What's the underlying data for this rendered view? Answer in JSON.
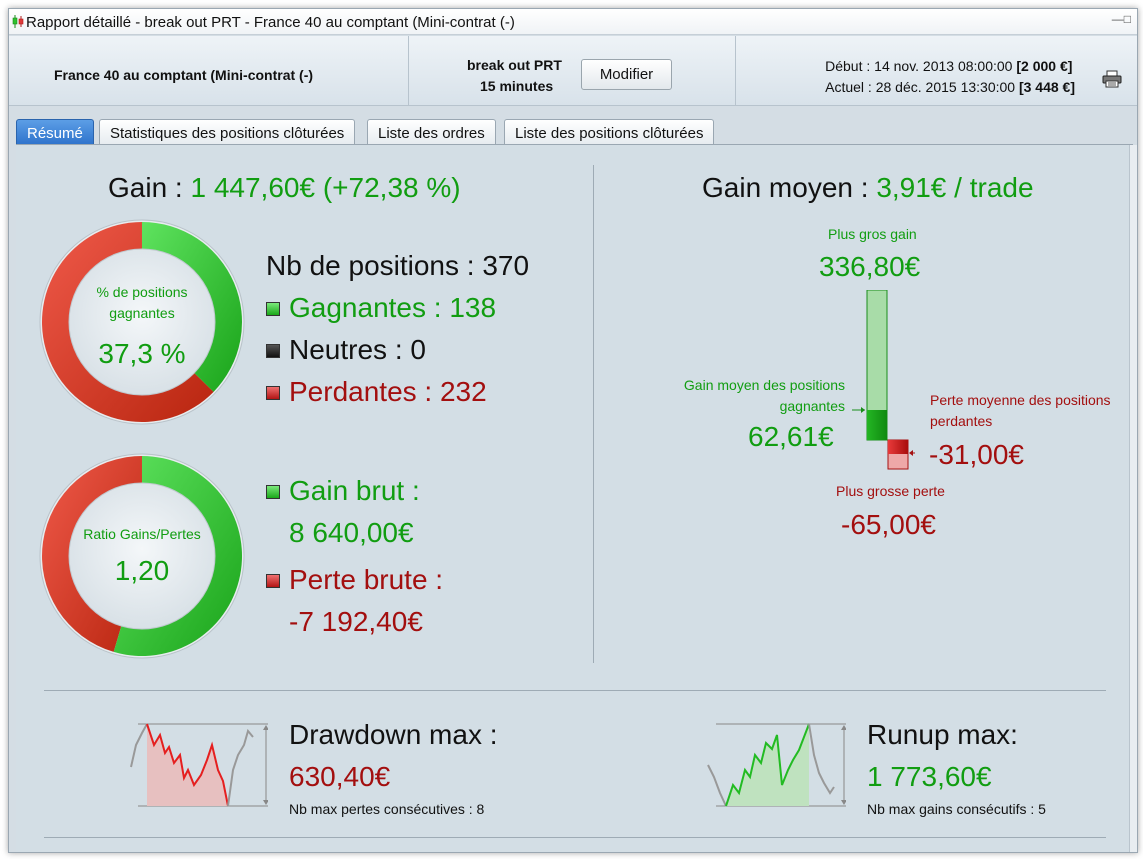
{
  "window": {
    "title": "Rapport détaillé - break out PRT - France 40 au comptant (Mini-contrat  (-)"
  },
  "header": {
    "instrument": "France 40 au comptant (Mini-contrat  (-)",
    "strategy_name": "break out PRT",
    "timeframe": "15 minutes",
    "modify_button": "Modifier",
    "start_label": "Début :",
    "start_date": "14 nov. 2013 08:00:00",
    "start_capital": "[2 000 €]",
    "current_label": "Actuel :",
    "current_date": "28 déc. 2015 13:30:00",
    "current_capital": "[3 448 €]"
  },
  "tabs": [
    {
      "label": "Résumé",
      "active": true
    },
    {
      "label": "Statistiques des positions clôturées",
      "active": false
    },
    {
      "label": "Liste des ordres",
      "active": false
    },
    {
      "label": "Liste des positions clôturées",
      "active": false
    }
  ],
  "summary": {
    "gain_label": "Gain :",
    "gain_value": "1 447,60€",
    "gain_pct": "(+72,38 %)",
    "win_ring": {
      "label_line1": "% de positions",
      "label_line2": "gagnantes",
      "value": "37,3 %",
      "win_fraction": 0.373
    },
    "positions_label": "Nb de positions : 370",
    "winning_label": "Gagnantes : 138",
    "neutral_label": "Neutres : 0",
    "losing_label": "Perdantes : 232",
    "ratio_ring": {
      "label": "Ratio Gains/Pertes",
      "value": "1,20",
      "win_fraction": 0.5457
    },
    "gross_gain_label": "Gain brut :",
    "gross_gain_value": "8 640,00€",
    "gross_loss_label": "Perte brute :",
    "gross_loss_value": "-7 192,40€"
  },
  "average": {
    "title_label": "Gain moyen :",
    "title_value": "3,91€ / trade",
    "largest_gain_label": "Plus gros gain",
    "largest_gain_value": "336,80€",
    "avg_win_label_line1": "Gain moyen des positions",
    "avg_win_label_line2": "gagnantes",
    "avg_win_value": "62,61€",
    "avg_loss_label_line1": "Perte moyenne des positions",
    "avg_loss_label_line2": "perdantes",
    "avg_loss_value": "-31,00€",
    "largest_loss_label": "Plus grosse perte",
    "largest_loss_value": "-65,00€"
  },
  "drawdown": {
    "title": "Drawdown max :",
    "value": "630,40€",
    "sub": "Nb max pertes consécutives : 8"
  },
  "runup": {
    "title": "Runup max:",
    "value": "1 773,60€",
    "sub": "Nb max gains consécutifs : 5"
  },
  "colors": {
    "green": "#119d11",
    "red": "#a30f0f",
    "accent_tab": "#2f74cc"
  },
  "icons": [
    "candlestick-icon",
    "window-control-icon",
    "printer-icon"
  ]
}
